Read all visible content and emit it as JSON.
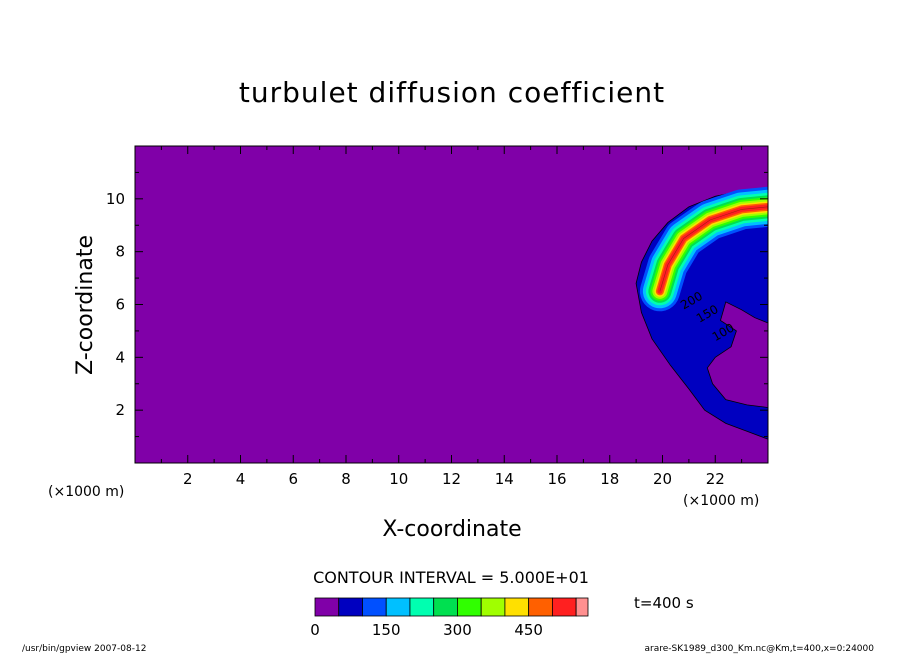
{
  "colors": {
    "background": "#8000a8",
    "levels": [
      "#8000a8",
      "#0000c0",
      "#0050ff",
      "#00c0ff",
      "#00ffb0",
      "#00e050",
      "#30ff00",
      "#a0ff00",
      "#ffe000",
      "#ff6000",
      "#ff2020",
      "#ff9090"
    ]
  },
  "chart_data": {
    "type": "heatmap",
    "title": "turbulet diffusion coefficient",
    "xlabel": "X-coordinate",
    "ylabel": "Z-coordinate",
    "x_unit": "(×1000 m)",
    "y_unit": "(×1000 m)",
    "xlim": [
      0.0,
      24.0
    ],
    "ylim": [
      0.0,
      12.0
    ],
    "x_ticks": [
      2,
      4,
      6,
      8,
      10,
      12,
      14,
      16,
      18,
      20,
      22
    ],
    "y_ticks": [
      2,
      4,
      6,
      8,
      10
    ],
    "contour_interval": "CONTOUR INTERVAL = 5.000E+01",
    "contour_labels": [
      "200",
      "150",
      "100"
    ],
    "time_label": "t=400 s",
    "colorbar": {
      "levels": [
        0,
        50,
        100,
        150,
        200,
        250,
        300,
        350,
        400,
        450,
        500,
        550
      ],
      "tick_labels": [
        "0",
        "150",
        "300",
        "450"
      ],
      "tick_values": [
        0,
        150,
        300,
        450
      ]
    },
    "field_region": {
      "outer_boundary": [
        [
          19.0,
          6.8
        ],
        [
          19.2,
          7.6
        ],
        [
          19.6,
          8.4
        ],
        [
          20.2,
          9.1
        ],
        [
          21.0,
          9.7
        ],
        [
          22.0,
          10.1
        ],
        [
          23.0,
          10.3
        ],
        [
          24.0,
          10.35
        ],
        [
          24.0,
          5.3
        ],
        [
          23.5,
          5.5
        ],
        [
          23.0,
          5.8
        ],
        [
          22.4,
          6.1
        ],
        [
          22.2,
          5.4
        ],
        [
          22.8,
          5.0
        ],
        [
          22.6,
          4.4
        ],
        [
          22.0,
          4.0
        ],
        [
          21.7,
          3.6
        ],
        [
          21.9,
          3.0
        ],
        [
          22.4,
          2.4
        ],
        [
          23.2,
          2.2
        ],
        [
          24.0,
          2.1
        ],
        [
          24.0,
          0.9
        ],
        [
          23.2,
          1.2
        ],
        [
          22.4,
          1.5
        ],
        [
          21.6,
          2.0
        ],
        [
          21.0,
          2.8
        ],
        [
          20.3,
          3.7
        ],
        [
          19.6,
          4.7
        ],
        [
          19.2,
          5.7
        ]
      ],
      "peak_band": [
        [
          19.9,
          6.5
        ],
        [
          20.2,
          7.5
        ],
        [
          20.8,
          8.5
        ],
        [
          21.8,
          9.2
        ],
        [
          23.0,
          9.6
        ],
        [
          24.0,
          9.7
        ]
      ]
    },
    "footer": {
      "left": "/usr/bin/gpview   2007-08-12",
      "right": "arare-SK1989_d300_Km.nc@Km,t=400,x=0:24000"
    }
  }
}
